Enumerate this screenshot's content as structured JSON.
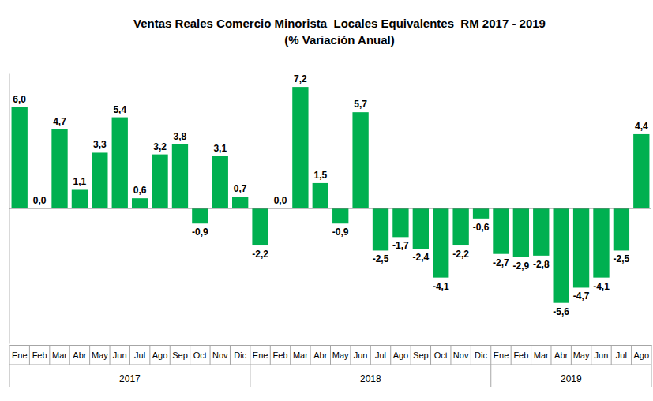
{
  "chart_data": {
    "type": "bar",
    "title": "Ventas Reales Comercio Minorista  Locales Equivalentes  RM 2017 - 2019",
    "subtitle": "(% Variación Anual)",
    "categories": [
      "Ene",
      "Feb",
      "Mar",
      "Abr",
      "May",
      "Jun",
      "Jul",
      "Ago",
      "Sep",
      "Oct",
      "Nov",
      "Dic",
      "Ene",
      "Feb",
      "Mar",
      "Abr",
      "May",
      "Jun",
      "Jul",
      "Ago",
      "Sep",
      "Oct",
      "Nov",
      "Dic",
      "Ene",
      "Feb",
      "Mar",
      "Abr",
      "May",
      "Jun",
      "Jul",
      "Ago"
    ],
    "category_groups": [
      {
        "label": "2017",
        "count": 12
      },
      {
        "label": "2018",
        "count": 12
      },
      {
        "label": "2019",
        "count": 8
      }
    ],
    "values": [
      6.0,
      0.0,
      4.7,
      1.1,
      3.3,
      5.4,
      0.6,
      3.2,
      3.8,
      -0.9,
      3.1,
      0.7,
      -2.2,
      0.0,
      7.2,
      1.5,
      -0.9,
      5.7,
      -2.5,
      -1.7,
      -2.4,
      -4.1,
      -2.2,
      -0.6,
      -2.7,
      -2.9,
      -2.8,
      -5.6,
      -4.7,
      -4.1,
      -2.5,
      4.4
    ],
    "value_labels": [
      "6,0",
      "0,0",
      "4,7",
      "1,1",
      "3,3",
      "5,4",
      "0,6",
      "3,2",
      "3,8",
      "-0,9",
      "3,1",
      "0,7",
      "-2,2",
      "0,0",
      "7,2",
      "1,5",
      "-0,9",
      "5,7",
      "-2,5",
      "-1,7",
      "-2,4",
      "-4,1",
      "-2,2",
      "-0,6",
      "-2,7",
      "-2,9",
      "-2,8",
      "-5,6",
      "-4,7",
      "-4,1",
      "-2,5",
      "4,4"
    ],
    "color": "#00b050",
    "ylim": [
      -8,
      8
    ],
    "yticks": [],
    "tick_labels": "x",
    "data_labels": true,
    "grid": false
  }
}
